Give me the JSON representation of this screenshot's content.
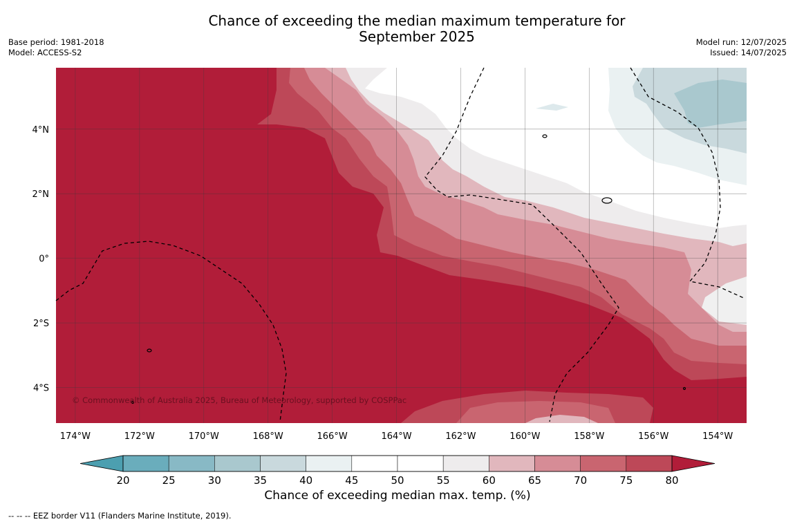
{
  "title_line1": "Chance of exceeding the median maximum temperature for",
  "title_line2": "September 2025",
  "base_period": "Base period: 1981-2018",
  "model": "Model: ACCESS-S2",
  "model_run": "Model run: 12/07/2025",
  "issued": "Issued: 14/07/2025",
  "copyright": "© Commonwealth of Australia 2025, Bureau of Meteorology, supported by COSPPac",
  "footnote": "-- -- -- EEZ border V11 (Flanders Marine Institute, 2019).",
  "map": {
    "lon_range": [
      -174.6,
      -153.1
    ],
    "lat_range": [
      -5.1,
      5.9
    ],
    "lon_ticks": [
      "174°W",
      "172°W",
      "170°W",
      "168°W",
      "166°W",
      "164°W",
      "162°W",
      "160°W",
      "158°W",
      "156°W",
      "154°W"
    ],
    "lon_tick_values": [
      -174,
      -172,
      -170,
      -168,
      -166,
      -164,
      -162,
      -160,
      -158,
      -156,
      -154
    ],
    "lat_ticks": [
      "4°N",
      "2°N",
      "0°",
      "2°S",
      "4°S"
    ],
    "lat_tick_values": [
      4,
      2,
      0,
      -2,
      -4
    ]
  },
  "colorbar": {
    "title": "Chance of exceeding median max. temp. (%)",
    "levels": [
      "20",
      "25",
      "30",
      "35",
      "40",
      "45",
      "50",
      "55",
      "60",
      "65",
      "70",
      "75",
      "80"
    ],
    "colors": [
      "#6aadbc",
      "#88b9c5",
      "#a9c8ce",
      "#c9d9dd",
      "#eaf1f2",
      "#ffffff",
      "#ffffff",
      "#eeeced",
      "#e1b7bd",
      "#d68c96",
      "#c96570",
      "#bd4858"
    ],
    "under_color": "#4c9fb0",
    "over_color": "#b11d39"
  },
  "colors": {
    "band_80_plus": "#b11d39",
    "band_75_80": "#bd4858",
    "band_70_75": "#c96570",
    "band_65_70": "#d68c96",
    "band_60_65": "#e1b7bd",
    "band_55_60": "#eeeced",
    "band_45_55": "#ffffff",
    "band_40_45": "#eaf1f2",
    "band_35_40": "#c9d9dd",
    "band_30_35": "#a9c8ce"
  }
}
